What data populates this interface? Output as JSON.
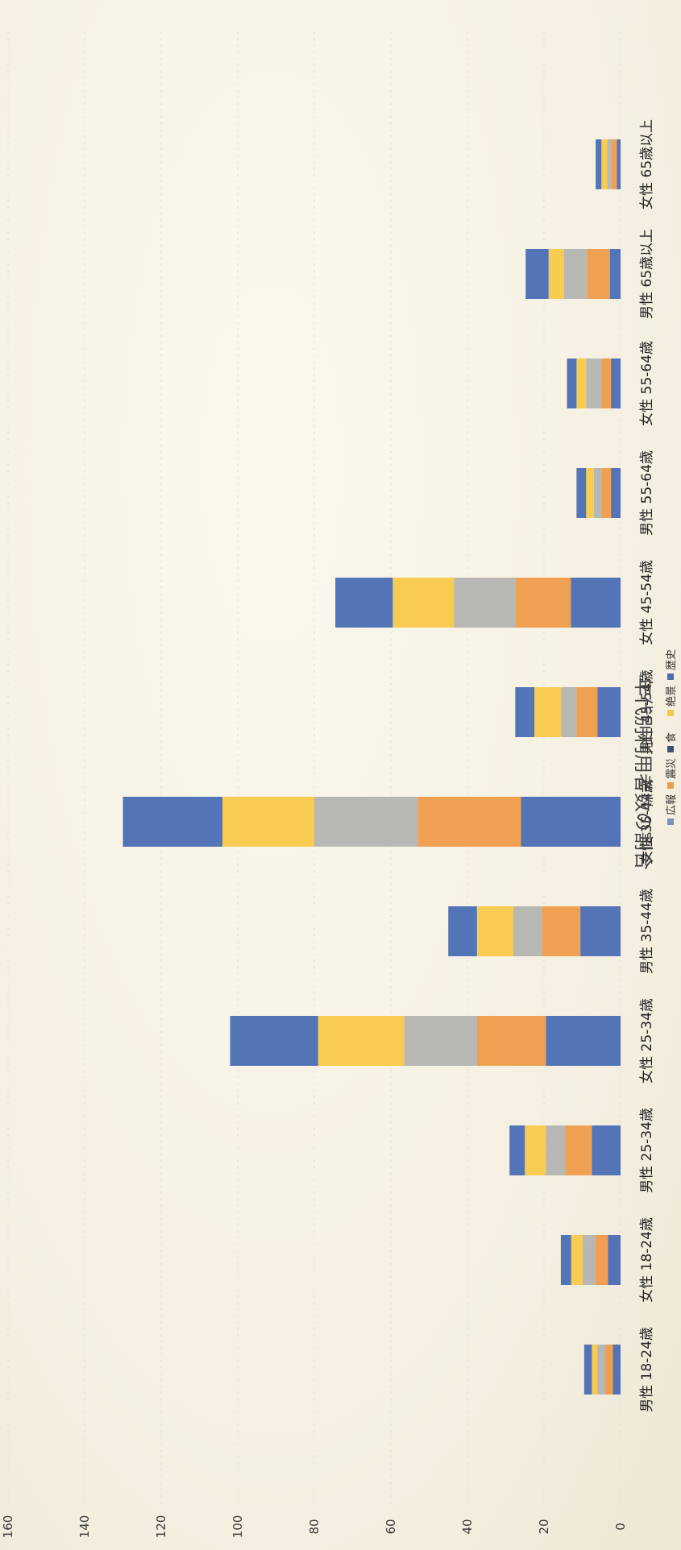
{
  "chart_data": {
    "type": "bar",
    "stacked": true,
    "title": "年代別利用者数の割合",
    "categories": [
      "男性 18-24歳",
      "女性 18-24歳",
      "男性 25-34歳",
      "女性 25-34歳",
      "男性 35-44歳",
      "女性 35-44歳",
      "男性 45-54歳",
      "女性 45-54歳",
      "男性 55-64歳",
      "女性 55-64歳",
      "男性 65歳以上",
      "女性 65歳以上"
    ],
    "series": [
      {
        "name": "歴史",
        "color": "#4a6db3",
        "values": [
          2.0,
          3.3,
          7.5,
          19.5,
          10.5,
          26.0,
          6.0,
          13.0,
          2.5,
          2.5,
          2.8,
          1.0
        ]
      },
      {
        "name": "広報",
        "color": "#ef9b4a",
        "values": [
          2.0,
          3.3,
          7.0,
          18.0,
          10.0,
          27.0,
          5.5,
          14.5,
          2.5,
          2.5,
          6.0,
          1.5
        ]
      },
      {
        "name": "震災",
        "color": "#b3b3b0",
        "values": [
          2.0,
          3.3,
          5.0,
          19.0,
          7.5,
          27.0,
          4.0,
          16.0,
          2.0,
          4.0,
          6.0,
          1.0
        ]
      },
      {
        "name": "食",
        "color": "#f7c948",
        "values": [
          1.5,
          3.0,
          5.5,
          22.5,
          9.5,
          24.0,
          7.0,
          16.0,
          2.0,
          2.5,
          4.0,
          1.5
        ]
      },
      {
        "name": "絶景",
        "color": "#4a6db3",
        "values": [
          2.0,
          2.7,
          4.0,
          23.0,
          7.5,
          26.0,
          5.0,
          15.0,
          2.5,
          2.5,
          6.0,
          1.5
        ]
      }
    ],
    "legend": [
      "広報",
      "震災",
      "食",
      "絶景",
      "歴史"
    ],
    "legend_colors": [
      "#7a8fbf",
      "#ef9b4a",
      "#3d4f7a",
      "#f7c948",
      "#4a6db3"
    ],
    "yticks": [
      0,
      20,
      40,
      60,
      80,
      100,
      120,
      140,
      160
    ],
    "ylim": [
      0,
      160
    ],
    "legend_position": "bottom",
    "orientation": "rotated-90"
  }
}
